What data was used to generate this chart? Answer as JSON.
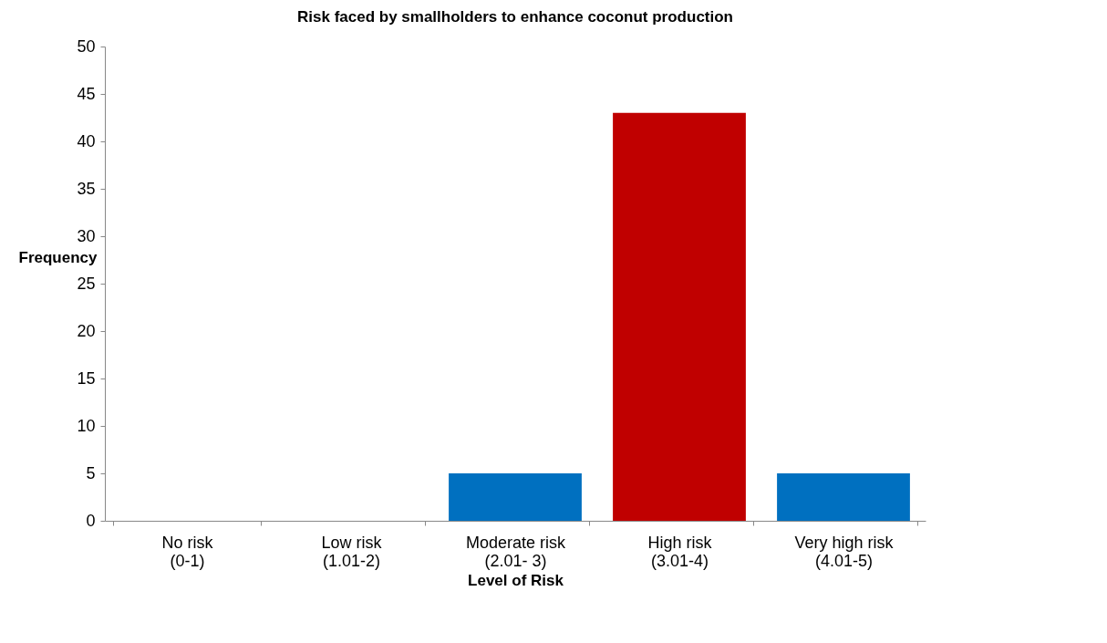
{
  "chart_data": {
    "type": "bar",
    "title": "Risk faced by smallholders to enhance coconut production",
    "xlabel": "Level of Risk",
    "ylabel": "Frequency",
    "categories": [
      "No risk\n(0-1)",
      "Low risk\n(1.01-2)",
      "Moderate risk\n(2.01- 3)",
      "High risk\n(3.01-4)",
      "Very high risk\n(4.01-5)"
    ],
    "values": [
      0,
      0,
      5,
      43,
      5
    ],
    "colors": [
      "#0070c0",
      "#0070c0",
      "#0070c0",
      "#c00000",
      "#0070c0"
    ],
    "ylim": [
      0,
      50
    ],
    "yticks": [
      0,
      5,
      10,
      15,
      20,
      25,
      30,
      35,
      40,
      45,
      50
    ],
    "grid": false,
    "legend": false
  }
}
